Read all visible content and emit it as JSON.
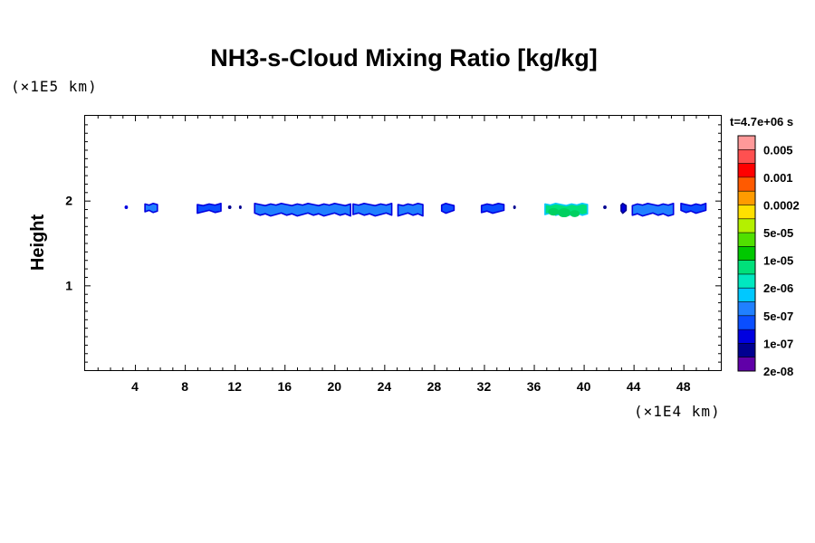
{
  "chart_data": {
    "type": "heatmap",
    "title": "NH3-s-Cloud Mixing Ratio [kg/kg]",
    "ylabel": "Height",
    "y_unit": "(×1E5 km)",
    "x_unit": "(×1E4 km)",
    "time_label": "t=4.7e+06 s",
    "xlim": [
      0,
      51
    ],
    "ylim": [
      0,
      3
    ],
    "x_ticks": [
      "4",
      "8",
      "12",
      "16",
      "20",
      "24",
      "28",
      "32",
      "36",
      "40",
      "44",
      "48"
    ],
    "y_ticks": [
      "1",
      "2"
    ],
    "colorbar": {
      "labels": [
        "0.005",
        "0.001",
        "0.0002",
        "5e-05",
        "1e-05",
        "2e-06",
        "5e-07",
        "1e-07",
        "2e-08"
      ],
      "colors": [
        "#ff9999",
        "#ff5050",
        "#ff0000",
        "#ff5a00",
        "#ff9b00",
        "#ffe000",
        "#b4f000",
        "#50e000",
        "#00c800",
        "#00e07a",
        "#00e8c0",
        "#00c8ff",
        "#2080ff",
        "#0a4eff",
        "#0000e0",
        "#000090",
        "#6000a8"
      ]
    },
    "cloud_base_height": 1.9,
    "cloud_patches": [
      {
        "x": [
          3.2,
          3.4
        ],
        "level": "1e-07"
      },
      {
        "x": [
          4.8,
          5.8
        ],
        "level": "5e-07"
      },
      {
        "x": [
          9.0,
          10.9
        ],
        "level": "1e-07"
      },
      {
        "x": [
          11.5,
          11.7
        ],
        "level": "2e-08"
      },
      {
        "x": [
          12.4,
          12.5
        ],
        "level": "2e-08"
      },
      {
        "x": [
          13.6,
          21.3
        ],
        "level": "5e-07"
      },
      {
        "x": [
          21.5,
          24.6
        ],
        "level": "5e-07"
      },
      {
        "x": [
          25.1,
          27.1
        ],
        "level": "5e-07"
      },
      {
        "x": [
          28.6,
          29.6
        ],
        "level": "1e-07"
      },
      {
        "x": [
          31.8,
          33.6
        ],
        "level": "1e-07"
      },
      {
        "x": [
          34.4,
          34.5
        ],
        "level": "2e-08"
      },
      {
        "x": [
          36.9,
          40.3
        ],
        "level": "2e-06"
      },
      {
        "x": [
          41.6,
          41.8
        ],
        "level": "2e-08"
      },
      {
        "x": [
          43.0,
          43.4
        ],
        "level": "2e-08"
      },
      {
        "x": [
          43.9,
          47.2
        ],
        "level": "5e-07"
      },
      {
        "x": [
          47.8,
          49.8
        ],
        "level": "1e-07"
      }
    ]
  }
}
